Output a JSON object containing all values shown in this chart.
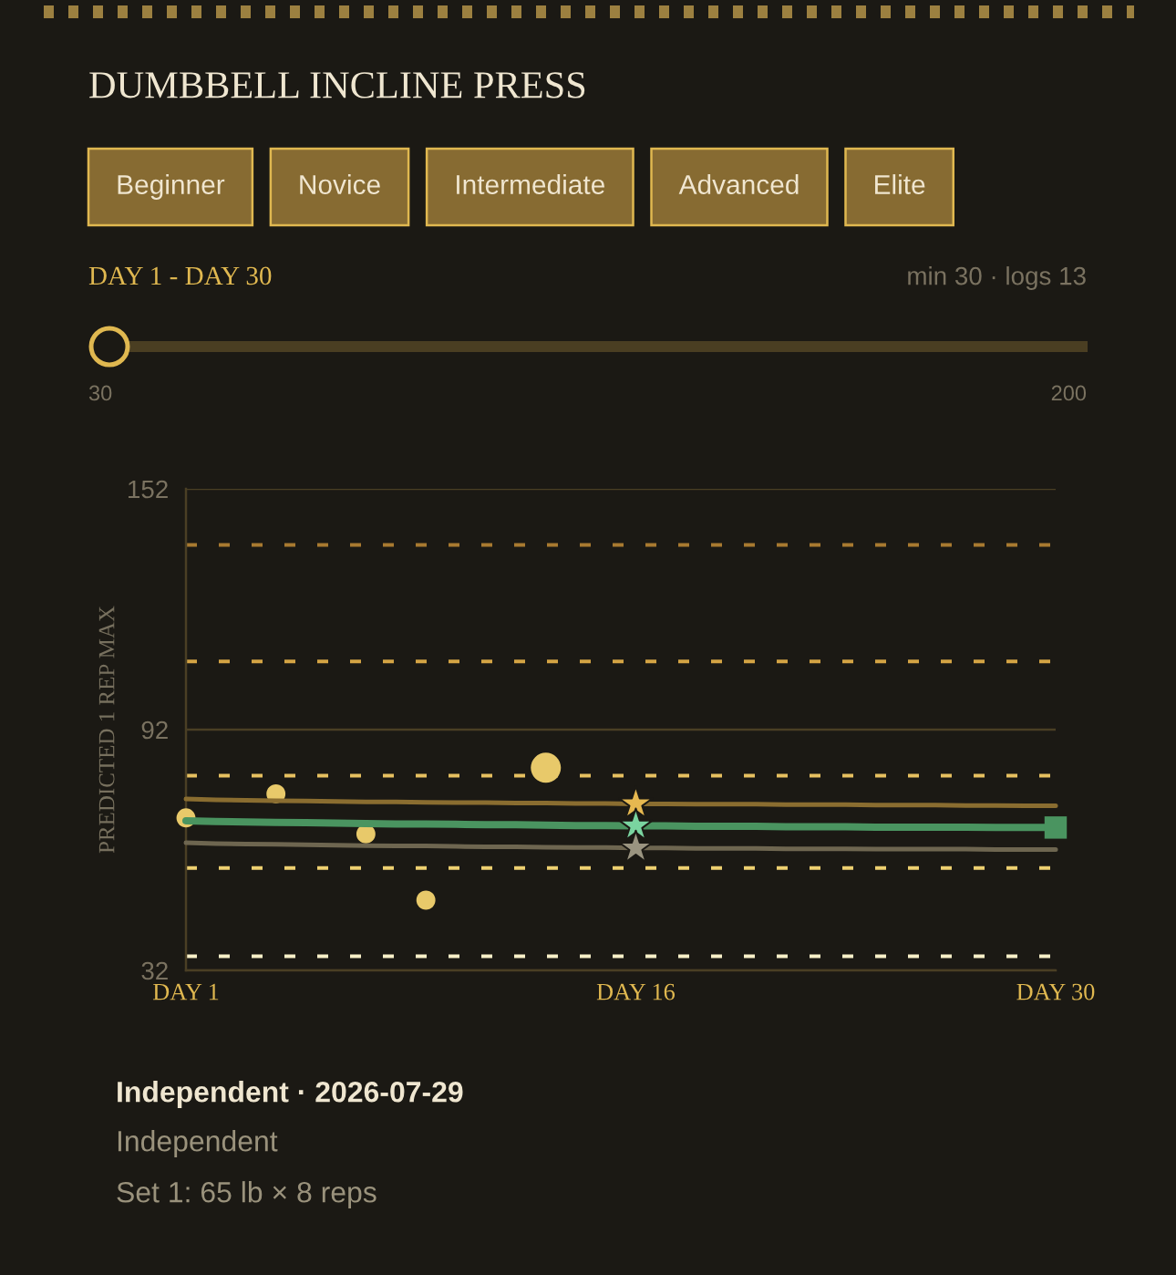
{
  "chart_data": {
    "type": "line",
    "title": "DUMBBELL INCLINE PRESS",
    "subtitle": "DAY 1 - DAY 30",
    "ylabel": "PREDICTED 1 REP MAX",
    "categories": [
      "DAY 1",
      null,
      null,
      null,
      null,
      null,
      null,
      null,
      null,
      null,
      null,
      null,
      null,
      null,
      null,
      "DAY 16",
      null,
      null,
      null,
      null,
      null,
      null,
      null,
      null,
      null,
      null,
      null,
      null,
      null,
      "DAY 30"
    ],
    "ylim": [
      32,
      152
    ],
    "yticks": [
      32,
      92,
      152
    ],
    "grid": "y",
    "series": [
      {
        "values": [
          74.7,
          74.5,
          74.4,
          74.3,
          74.2,
          74.1,
          74.0,
          74.0,
          73.9,
          73.8,
          73.8,
          73.7,
          73.7,
          73.6,
          73.6,
          73.5,
          73.5,
          73.4,
          73.4,
          73.4,
          73.3,
          73.3,
          73.3,
          73.2,
          73.2,
          73.2,
          73.1,
          73.1,
          73.0,
          73.0
        ],
        "color": "#8a6d30"
      },
      {
        "values": [
          69.3,
          69.1,
          69.0,
          68.9,
          68.8,
          68.7,
          68.6,
          68.5,
          68.5,
          68.4,
          68.3,
          68.3,
          68.2,
          68.1,
          68.1,
          68.0,
          68.0,
          67.9,
          67.9,
          67.9,
          67.8,
          67.8,
          67.8,
          67.7,
          67.7,
          67.7,
          67.7,
          67.6,
          67.6,
          67.6
        ],
        "color": "#4a9460"
      },
      {
        "values": [
          63.8,
          63.6,
          63.5,
          63.4,
          63.3,
          63.2,
          63.1,
          63.0,
          63.0,
          62.9,
          62.8,
          62.8,
          62.7,
          62.6,
          62.6,
          62.5,
          62.5,
          62.4,
          62.4,
          62.4,
          62.3,
          62.3,
          62.3,
          62.2,
          62.2,
          62.2,
          62.2,
          62.1,
          62.1,
          62.1
        ],
        "color": "#6e6650"
      },
      {
        "type": "scatter",
        "values": [
          null,
          null,
          null,
          null,
          null,
          null,
          null,
          null,
          null,
          null,
          null,
          null,
          null,
          null,
          null,
          73.5,
          null,
          null,
          null,
          null,
          null,
          null,
          null,
          null,
          null,
          null,
          null,
          null,
          null,
          null
        ],
        "color": "#e6b850",
        "marker": "star"
      },
      {
        "type": "scatter",
        "values": [
          null,
          null,
          null,
          null,
          null,
          null,
          null,
          null,
          null,
          null,
          null,
          null,
          null,
          null,
          null,
          68.0,
          null,
          null,
          null,
          null,
          null,
          null,
          null,
          null,
          null,
          null,
          null,
          null,
          null,
          null
        ],
        "color": "#7ad4a0",
        "marker": "star"
      },
      {
        "type": "scatter",
        "values": [
          null,
          null,
          null,
          null,
          null,
          null,
          null,
          null,
          null,
          null,
          null,
          null,
          null,
          null,
          null,
          62.5,
          null,
          null,
          null,
          null,
          null,
          null,
          null,
          null,
          null,
          null,
          null,
          null,
          null,
          null
        ],
        "color": "#9a9480",
        "marker": "star"
      },
      {
        "type": "scatter",
        "values": [
          null,
          null,
          null,
          null,
          null,
          null,
          null,
          null,
          null,
          null,
          null,
          null,
          null,
          null,
          null,
          null,
          null,
          null,
          null,
          null,
          null,
          null,
          null,
          null,
          null,
          null,
          null,
          null,
          null,
          67.6
        ],
        "color": "#4a9460",
        "marker": "square"
      },
      {
        "type": "bubble",
        "values": [
          70,
          null,
          null,
          76,
          null,
          null,
          66,
          null,
          49.5,
          null,
          null,
          null,
          82.5,
          null,
          null,
          null,
          null,
          null,
          null,
          null,
          null,
          null,
          null,
          null,
          null,
          null,
          null,
          null,
          null,
          null
        ],
        "sizes": [
          0.4,
          null,
          null,
          0.4,
          null,
          null,
          0.4,
          null,
          0.4,
          null,
          null,
          null,
          1,
          null,
          null,
          null,
          null,
          null,
          null,
          null,
          null,
          null,
          null,
          null,
          null,
          null,
          null,
          null,
          null,
          null
        ],
        "color": "#e8c96a",
        "marker": "circle"
      }
    ],
    "ref_lines": [
      {
        "axis": "y",
        "value": 138,
        "color": "#a87a30",
        "line_style": "dashed"
      },
      {
        "axis": "y",
        "value": 109,
        "color": "#d4a444",
        "line_style": "dashed"
      },
      {
        "axis": "y",
        "value": 80.5,
        "color": "#e6c060",
        "line_style": "dashed"
      },
      {
        "axis": "y",
        "value": 57.5,
        "color": "#eed070",
        "line_style": "dashed"
      },
      {
        "axis": "y",
        "value": 35.5,
        "color": "#f8f0c8",
        "line_style": "dashed"
      }
    ],
    "annotations": [
      "Beginner",
      "Novice",
      "Intermediate",
      "Advanced",
      "Elite",
      "min 30 · logs 13",
      "30",
      "200",
      "Independent · 2026-07-29",
      "Independent",
      "Set 1: 65 lb × 8 reps"
    ]
  }
}
